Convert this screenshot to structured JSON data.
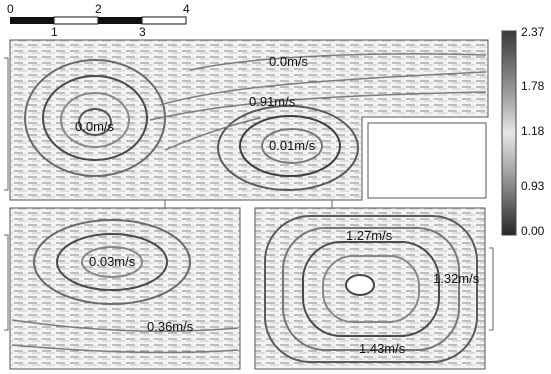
{
  "scale_bar": {
    "ticks": [
      "0",
      "1",
      "2",
      "3",
      "4"
    ]
  },
  "colorbar": {
    "ticks": [
      "2.37",
      "1.78",
      "1.18",
      "0.93",
      "0.00"
    ],
    "values": [
      2.37,
      1.78,
      1.18,
      0.93,
      0.0
    ]
  },
  "panels": {
    "top": {
      "labels": {
        "a": "0.0m/s",
        "b": "0.91m/s",
        "c": "0.0m/s",
        "d": "0.01m/s"
      }
    },
    "bottom_left": {
      "labels": {
        "a": "0.03m/s",
        "b": "0.36m/s"
      }
    },
    "bottom_right": {
      "labels": {
        "a": "1.27m/s",
        "b": "1.32m/s",
        "c": "1.43m/s"
      }
    }
  },
  "colors": {
    "ink": "#111111",
    "colorbar_high": "#3a3a3a",
    "colorbar_mid": "#cfcfcf",
    "colorbar_low": "#2a2a2a"
  }
}
